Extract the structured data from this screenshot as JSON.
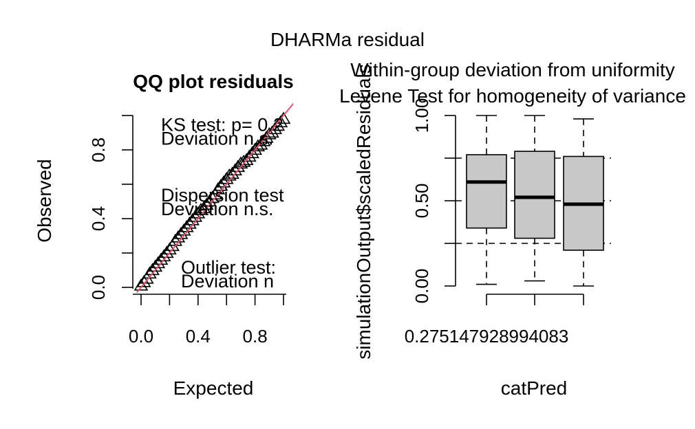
{
  "figure": {
    "title": "DHARMa residual"
  },
  "chart_data": [
    {
      "type": "scatter",
      "title": "QQ plot residuals",
      "xlabel": "Expected",
      "ylabel": "Observed",
      "xlim": [
        0,
        1
      ],
      "ylim": [
        0,
        1
      ],
      "xticks": [
        "0.0",
        "0.4",
        "0.8"
      ],
      "yticks": [
        "0.0",
        "0.4",
        "0.8"
      ],
      "reference_line": {
        "intercept": 0,
        "slope": 1,
        "color": "#df536b"
      },
      "point_color": "#000000",
      "points_x": [
        0.0,
        0.02,
        0.04,
        0.06,
        0.08,
        0.1,
        0.12,
        0.14,
        0.16,
        0.18,
        0.2,
        0.22,
        0.24,
        0.26,
        0.28,
        0.3,
        0.32,
        0.34,
        0.36,
        0.38,
        0.4,
        0.42,
        0.44,
        0.46,
        0.48,
        0.5,
        0.52,
        0.54,
        0.56,
        0.58,
        0.6,
        0.62,
        0.64,
        0.66,
        0.68,
        0.7,
        0.72,
        0.74,
        0.76,
        0.78,
        0.8,
        0.82,
        0.84,
        0.86,
        0.88,
        0.9,
        0.92,
        0.94,
        0.96,
        0.98,
        1.0
      ],
      "points_y": [
        0.01,
        0.03,
        0.05,
        0.08,
        0.1,
        0.12,
        0.14,
        0.16,
        0.18,
        0.2,
        0.22,
        0.24,
        0.27,
        0.29,
        0.31,
        0.33,
        0.35,
        0.37,
        0.39,
        0.41,
        0.43,
        0.45,
        0.46,
        0.48,
        0.5,
        0.52,
        0.54,
        0.57,
        0.59,
        0.61,
        0.63,
        0.65,
        0.66,
        0.68,
        0.7,
        0.72,
        0.73,
        0.74,
        0.76,
        0.78,
        0.8,
        0.82,
        0.83,
        0.85,
        0.87,
        0.89,
        0.9,
        0.92,
        0.94,
        0.96,
        0.98
      ],
      "annotations": [
        {
          "text": "KS test: p= 0.2",
          "x": 0.14,
          "y": 0.95
        },
        {
          "text": "Deviation n.s.",
          "x": 0.14,
          "y": 0.87
        },
        {
          "text": "Dispersion test",
          "x": 0.14,
          "y": 0.54
        },
        {
          "text": "Deviation n.s.",
          "x": 0.14,
          "y": 0.46
        },
        {
          "text": "Outlier test:",
          "x": 0.28,
          "y": 0.12
        },
        {
          "text": "Deviation n",
          "x": 0.28,
          "y": 0.04
        }
      ]
    },
    {
      "type": "box",
      "title_lines": [
        "Within-group deviation from uniformity",
        "Levene Test for homogeneity of variance"
      ],
      "xlabel": "catPred",
      "ylabel": "simulationOutput$scaledResiduals",
      "ylim": [
        0,
        1
      ],
      "yticks": [
        "0.00",
        "0.50",
        "1.00"
      ],
      "xtick_label": "0.275147928994083",
      "hlines": [
        0.25,
        0.5,
        0.75
      ],
      "box_fill": "#c8c8c8",
      "boxes": [
        {
          "min": 0.01,
          "q1": 0.34,
          "median": 0.61,
          "q3": 0.77,
          "max": 1.0
        },
        {
          "min": 0.03,
          "q1": 0.28,
          "median": 0.52,
          "q3": 0.79,
          "max": 1.0
        },
        {
          "min": 0.0,
          "q1": 0.21,
          "median": 0.48,
          "q3": 0.76,
          "max": 0.98
        }
      ]
    }
  ]
}
